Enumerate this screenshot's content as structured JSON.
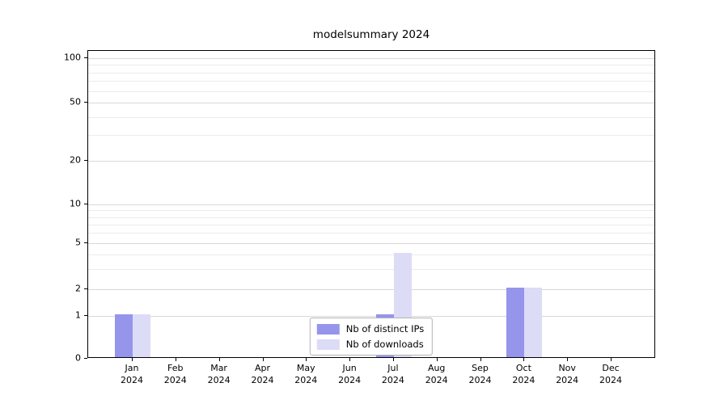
{
  "figure": {
    "title": "modelsummary 2024",
    "background": "#ffffff"
  },
  "chart_data": {
    "type": "bar",
    "title": "modelsummary 2024",
    "categories": [
      {
        "month": "Jan",
        "year": "2024"
      },
      {
        "month": "Feb",
        "year": "2024"
      },
      {
        "month": "Mar",
        "year": "2024"
      },
      {
        "month": "Apr",
        "year": "2024"
      },
      {
        "month": "May",
        "year": "2024"
      },
      {
        "month": "Jun",
        "year": "2024"
      },
      {
        "month": "Jul",
        "year": "2024"
      },
      {
        "month": "Aug",
        "year": "2024"
      },
      {
        "month": "Sep",
        "year": "2024"
      },
      {
        "month": "Oct",
        "year": "2024"
      },
      {
        "month": "Nov",
        "year": "2024"
      },
      {
        "month": "Dec",
        "year": "2024"
      }
    ],
    "series": [
      {
        "name": "Nb of distinct IPs",
        "color": "#9595ec",
        "values": [
          1,
          0,
          0,
          0,
          0,
          0,
          1,
          0,
          0,
          2,
          0,
          0
        ]
      },
      {
        "name": "Nb of downloads",
        "color": "#dcdcf7",
        "values": [
          1,
          0,
          0,
          0,
          0,
          0,
          4,
          0,
          0,
          2,
          0,
          0
        ]
      }
    ],
    "y_axis": {
      "scale": "symlog",
      "ticks": [
        0,
        1,
        2,
        5,
        10,
        20,
        50,
        100
      ],
      "minor_gridlines": [
        3,
        4,
        6,
        7,
        8,
        9,
        30,
        40,
        60,
        70,
        80,
        90
      ],
      "ylim": [
        0,
        110
      ]
    },
    "xlabel": "",
    "ylabel": "",
    "grid": true,
    "legend": {
      "position": "lower center",
      "entries": [
        "Nb of distinct IPs",
        "Nb of downloads"
      ]
    }
  },
  "colors": {
    "axis": "#000000",
    "grid_major": "#d8d8d8",
    "grid_minor": "#ebebeb",
    "legend_border": "#b3b3b3",
    "text": "#000000"
  }
}
